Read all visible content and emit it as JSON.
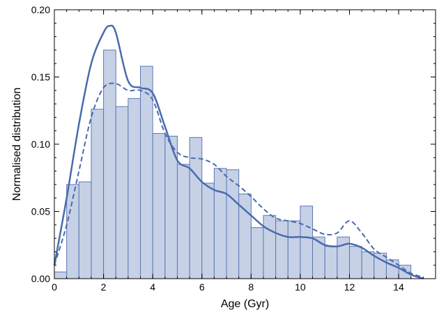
{
  "chart_data": {
    "type": "bar",
    "title": "",
    "xlabel": "Age (Gyr)",
    "ylabel": "Normalised distribution",
    "xlim": [
      0,
      15.5
    ],
    "ylim": [
      0,
      0.2
    ],
    "xticks": [
      0,
      2,
      4,
      6,
      8,
      10,
      12,
      14
    ],
    "xtick_labels": [
      "0",
      "2",
      "4",
      "6",
      "8",
      "10",
      "12",
      "14"
    ],
    "yticks": [
      0,
      0.05,
      0.1,
      0.15,
      0.2
    ],
    "ytick_labels": [
      "0.00",
      "0.05",
      "0.10",
      "0.15",
      "0.20"
    ],
    "grid": false,
    "colors": {
      "bar_fill": "#c6d1e6",
      "bar_stroke": "#5b77b4",
      "line": "#4a6aae"
    },
    "histogram": {
      "bin_width": 0.5,
      "bin_starts": [
        0,
        0.5,
        1,
        1.5,
        2,
        2.5,
        3,
        3.5,
        4,
        4.5,
        5,
        5.5,
        6,
        6.5,
        7,
        7.5,
        8,
        8.5,
        9,
        9.5,
        10,
        10.5,
        11,
        11.5,
        12,
        12.5,
        13,
        13.5,
        14
      ],
      "values": [
        0.005,
        0.07,
        0.072,
        0.126,
        0.17,
        0.128,
        0.134,
        0.158,
        0.108,
        0.106,
        0.085,
        0.105,
        0.071,
        0.082,
        0.081,
        0.063,
        0.038,
        0.047,
        0.043,
        0.043,
        0.054,
        0.031,
        0.024,
        0.031,
        0.024,
        0.02,
        0.019,
        0.014,
        0.01
      ]
    },
    "series": [
      {
        "style": "solid",
        "x": [
          0,
          0.5,
          1,
          1.5,
          2,
          2.25,
          2.5,
          3,
          3.5,
          4,
          4.5,
          5,
          5.5,
          6,
          6.5,
          7,
          7.5,
          8,
          8.5,
          9,
          9.5,
          10,
          10.5,
          11,
          11.5,
          12,
          12.5,
          13,
          13.5,
          14,
          14.5,
          15
        ],
        "y": [
          0.01,
          0.06,
          0.115,
          0.16,
          0.183,
          0.188,
          0.183,
          0.147,
          0.142,
          0.138,
          0.113,
          0.088,
          0.082,
          0.072,
          0.066,
          0.063,
          0.055,
          0.047,
          0.039,
          0.034,
          0.031,
          0.031,
          0.03,
          0.025,
          0.024,
          0.026,
          0.023,
          0.017,
          0.012,
          0.008,
          0.003,
          0.0
        ]
      },
      {
        "style": "dashed",
        "x": [
          0,
          0.5,
          1,
          1.5,
          2,
          2.5,
          3,
          3.5,
          4,
          4.5,
          5,
          5.5,
          6,
          6.5,
          7,
          7.5,
          8,
          8.5,
          9,
          9.5,
          10,
          10.5,
          11,
          11.5,
          12,
          12.5,
          13,
          13.5,
          14,
          14.5,
          15
        ],
        "y": [
          0.01,
          0.04,
          0.08,
          0.12,
          0.142,
          0.145,
          0.14,
          0.14,
          0.133,
          0.108,
          0.094,
          0.09,
          0.089,
          0.085,
          0.076,
          0.069,
          0.061,
          0.052,
          0.045,
          0.043,
          0.041,
          0.037,
          0.033,
          0.034,
          0.043,
          0.034,
          0.022,
          0.016,
          0.01,
          0.004,
          0.001
        ]
      }
    ]
  }
}
